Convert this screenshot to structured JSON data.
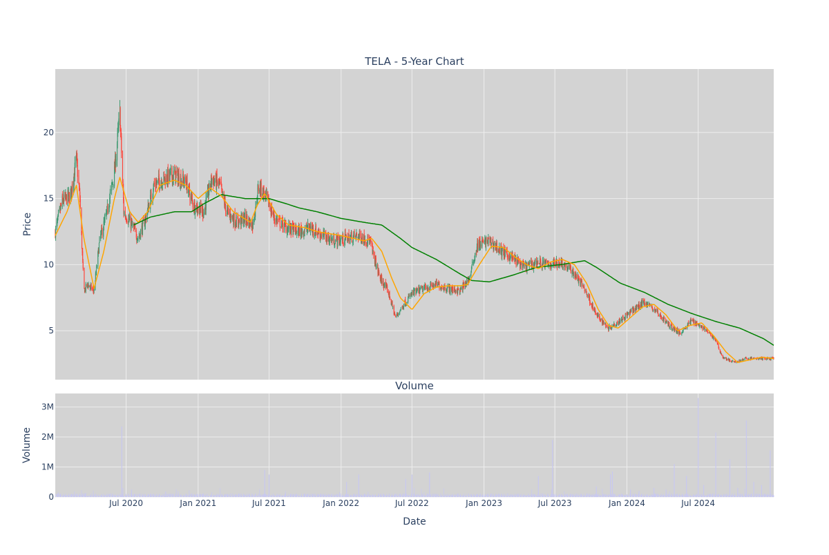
{
  "colors": {
    "plot_bg": "#d3d3d3",
    "grid": "#eeeeee",
    "up": "#3d9970",
    "down": "#ff4136",
    "ma_short": "#ffa500",
    "ma_long": "#008000",
    "volume": "#c8c8f0",
    "text": "#2a3f5f"
  },
  "chart_data": [
    {
      "type": "candlestick",
      "title": "TELA - 5-Year Chart",
      "ylabel": "Price",
      "xlabel": "",
      "ylim": [
        1.3,
        24.8
      ],
      "xlim": [
        "2020-01-02",
        "2025-01-10"
      ],
      "yticks": [
        5,
        10,
        15,
        20
      ],
      "grid": true,
      "legend": "none",
      "series": [
        {
          "kind": "candlestick",
          "approx_close": [
            [
              "2020-01-02",
              12.5
            ],
            [
              "2020-01-20",
              14.8
            ],
            [
              "2020-02-10",
              15.2
            ],
            [
              "2020-02-25",
              18.0
            ],
            [
              "2020-03-05",
              15.0
            ],
            [
              "2020-03-15",
              8.0
            ],
            [
              "2020-03-25",
              8.5
            ],
            [
              "2020-04-10",
              8.0
            ],
            [
              "2020-04-25",
              12.0
            ],
            [
              "2020-05-10",
              13.5
            ],
            [
              "2020-06-01",
              17.0
            ],
            [
              "2020-06-15",
              21.5
            ],
            [
              "2020-06-25",
              14.0
            ],
            [
              "2020-07-15",
              13.0
            ],
            [
              "2020-08-01",
              12.0
            ],
            [
              "2020-08-20",
              13.5
            ],
            [
              "2020-09-10",
              16.0
            ],
            [
              "2020-10-05",
              16.5
            ],
            [
              "2020-11-01",
              16.8
            ],
            [
              "2020-12-01",
              16.2
            ],
            [
              "2020-12-20",
              14.5
            ],
            [
              "2021-01-15",
              14.0
            ],
            [
              "2021-02-05",
              16.5
            ],
            [
              "2021-02-25",
              16.0
            ],
            [
              "2021-03-15",
              14.0
            ],
            [
              "2021-04-10",
              13.2
            ],
            [
              "2021-05-01",
              13.5
            ],
            [
              "2021-05-20",
              13.0
            ],
            [
              "2021-06-05",
              16.0
            ],
            [
              "2021-06-25",
              15.0
            ],
            [
              "2021-07-15",
              13.5
            ],
            [
              "2021-08-15",
              12.8
            ],
            [
              "2021-09-15",
              12.5
            ],
            [
              "2021-10-15",
              12.8
            ],
            [
              "2021-11-15",
              12.2
            ],
            [
              "2021-12-15",
              11.8
            ],
            [
              "2022-01-15",
              12.0
            ],
            [
              "2022-02-15",
              12.2
            ],
            [
              "2022-03-15",
              11.8
            ],
            [
              "2022-04-10",
              9.0
            ],
            [
              "2022-05-01",
              8.0
            ],
            [
              "2022-05-20",
              6.0
            ],
            [
              "2022-06-10",
              7.0
            ],
            [
              "2022-07-01",
              7.8
            ],
            [
              "2022-08-01",
              8.2
            ],
            [
              "2022-09-01",
              8.5
            ],
            [
              "2022-10-01",
              8.2
            ],
            [
              "2022-11-01",
              8.0
            ],
            [
              "2022-11-25",
              9.0
            ],
            [
              "2022-12-15",
              11.5
            ],
            [
              "2023-01-15",
              11.8
            ],
            [
              "2023-02-15",
              11.0
            ],
            [
              "2023-03-15",
              10.5
            ],
            [
              "2023-04-15",
              9.8
            ],
            [
              "2023-05-15",
              10.2
            ],
            [
              "2023-06-15",
              10.0
            ],
            [
              "2023-07-15",
              10.2
            ],
            [
              "2023-08-15",
              9.5
            ],
            [
              "2023-09-15",
              8.2
            ],
            [
              "2023-10-15",
              6.2
            ],
            [
              "2023-11-15",
              5.2
            ],
            [
              "2023-12-15",
              5.8
            ],
            [
              "2024-01-15",
              6.5
            ],
            [
              "2024-02-15",
              7.2
            ],
            [
              "2024-03-15",
              6.5
            ],
            [
              "2024-04-15",
              5.5
            ],
            [
              "2024-05-15",
              4.8
            ],
            [
              "2024-06-15",
              5.8
            ],
            [
              "2024-07-15",
              5.2
            ],
            [
              "2024-08-15",
              4.3
            ],
            [
              "2024-09-01",
              3.0
            ],
            [
              "2024-10-01",
              2.6
            ],
            [
              "2024-11-01",
              2.9
            ],
            [
              "2024-12-01",
              2.9
            ],
            [
              "2025-01-10",
              2.9
            ]
          ]
        },
        {
          "kind": "line",
          "approx_values": [
            [
              "2020-01-02",
              12.2
            ],
            [
              "2020-02-01",
              14.0
            ],
            [
              "2020-02-25",
              16.0
            ],
            [
              "2020-03-15",
              12.0
            ],
            [
              "2020-04-10",
              8.2
            ],
            [
              "2020-05-05",
              11.0
            ],
            [
              "2020-06-01",
              15.0
            ],
            [
              "2020-06-15",
              16.6
            ],
            [
              "2020-07-10",
              14.0
            ],
            [
              "2020-08-01",
              13.2
            ],
            [
              "2020-08-25",
              14.0
            ],
            [
              "2020-09-25",
              16.0
            ],
            [
              "2020-11-01",
              16.4
            ],
            [
              "2020-12-01",
              16.0
            ],
            [
              "2021-01-01",
              15.0
            ],
            [
              "2021-02-01",
              15.8
            ],
            [
              "2021-03-01",
              15.2
            ],
            [
              "2021-04-01",
              14.0
            ],
            [
              "2021-05-15",
              13.2
            ],
            [
              "2021-06-01",
              14.5
            ],
            [
              "2021-06-20",
              15.4
            ],
            [
              "2021-07-20",
              13.8
            ],
            [
              "2021-08-20",
              13.0
            ],
            [
              "2021-10-01",
              12.8
            ],
            [
              "2021-11-01",
              12.5
            ],
            [
              "2022-01-01",
              12.2
            ],
            [
              "2022-03-01",
              11.8
            ],
            [
              "2022-03-20",
              12.0
            ],
            [
              "2022-04-15",
              11.0
            ],
            [
              "2022-05-10",
              9.0
            ],
            [
              "2022-06-01",
              7.5
            ],
            [
              "2022-07-01",
              6.6
            ],
            [
              "2022-08-01",
              7.8
            ],
            [
              "2022-09-01",
              8.3
            ],
            [
              "2022-10-01",
              8.4
            ],
            [
              "2022-11-01",
              8.4
            ],
            [
              "2022-11-20",
              8.5
            ],
            [
              "2022-12-20",
              10.0
            ],
            [
              "2023-01-20",
              11.4
            ],
            [
              "2023-02-20",
              11.3
            ],
            [
              "2023-03-20",
              10.6
            ],
            [
              "2023-04-20",
              10.0
            ],
            [
              "2023-05-20",
              9.7
            ],
            [
              "2023-06-20",
              10.2
            ],
            [
              "2023-07-20",
              10.4
            ],
            [
              "2023-08-20",
              10.0
            ],
            [
              "2023-09-20",
              8.6
            ],
            [
              "2023-10-20",
              6.6
            ],
            [
              "2023-11-15",
              5.4
            ],
            [
              "2023-12-10",
              5.2
            ],
            [
              "2024-01-10",
              6.0
            ],
            [
              "2024-02-10",
              6.8
            ],
            [
              "2024-03-10",
              7.0
            ],
            [
              "2024-04-10",
              6.2
            ],
            [
              "2024-05-10",
              5.0
            ],
            [
              "2024-06-10",
              5.4
            ],
            [
              "2024-07-10",
              5.6
            ],
            [
              "2024-08-10",
              4.6
            ],
            [
              "2024-09-10",
              3.4
            ],
            [
              "2024-10-10",
              2.6
            ],
            [
              "2024-11-10",
              2.8
            ],
            [
              "2024-12-10",
              3.0
            ],
            [
              "2025-01-10",
              2.9
            ]
          ]
        },
        {
          "kind": "line",
          "approx_values": [
            [
              "2020-07-20",
              13.0
            ],
            [
              "2020-09-01",
              13.6
            ],
            [
              "2020-11-01",
              14.0
            ],
            [
              "2020-12-15",
              14.0
            ],
            [
              "2021-01-15",
              14.6
            ],
            [
              "2021-03-01",
              15.3
            ],
            [
              "2021-05-01",
              15.0
            ],
            [
              "2021-07-01",
              15.0
            ],
            [
              "2021-08-15",
              14.6
            ],
            [
              "2021-09-15",
              14.3
            ],
            [
              "2021-11-01",
              14.0
            ],
            [
              "2022-01-01",
              13.5
            ],
            [
              "2022-03-01",
              13.2
            ],
            [
              "2022-04-15",
              13.0
            ],
            [
              "2022-06-01",
              12.0
            ],
            [
              "2022-07-01",
              11.3
            ],
            [
              "2022-09-01",
              10.4
            ],
            [
              "2022-11-01",
              9.3
            ],
            [
              "2022-12-01",
              8.8
            ],
            [
              "2023-01-15",
              8.7
            ],
            [
              "2023-03-15",
              9.2
            ],
            [
              "2023-05-15",
              9.8
            ],
            [
              "2023-07-15",
              10.0
            ],
            [
              "2023-09-15",
              10.3
            ],
            [
              "2023-10-15",
              9.8
            ],
            [
              "2023-12-15",
              8.6
            ],
            [
              "2024-02-15",
              7.9
            ],
            [
              "2024-04-15",
              7.0
            ],
            [
              "2024-06-15",
              6.3
            ],
            [
              "2024-08-15",
              5.7
            ],
            [
              "2024-10-15",
              5.2
            ],
            [
              "2024-12-15",
              4.4
            ],
            [
              "2025-01-10",
              3.9
            ]
          ]
        }
      ]
    },
    {
      "type": "bar",
      "title": "Volume",
      "ylabel": "Volume",
      "xlabel": "Date",
      "ylim": [
        0,
        3450000
      ],
      "yticks": [
        0,
        1000000,
        2000000,
        3000000
      ],
      "ytick_labels": [
        "0",
        "1M",
        "2M",
        "3M"
      ],
      "xticks": [
        "2020-07-01",
        "2021-01-01",
        "2021-07-01",
        "2022-01-01",
        "2022-07-01",
        "2023-01-01",
        "2023-07-01",
        "2024-01-01",
        "2024-07-01"
      ],
      "xtick_labels": [
        "Jul 2020",
        "Jan 2021",
        "Jul 2021",
        "Jan 2022",
        "Jul 2022",
        "Jan 2023",
        "Jul 2023",
        "Jan 2024",
        "Jul 2024"
      ],
      "baseline_volume": 80000,
      "notable_bars": [
        [
          "2020-01-10",
          150000
        ],
        [
          "2020-03-20",
          130000
        ],
        [
          "2020-06-20",
          2350000
        ],
        [
          "2020-07-15",
          250000
        ],
        [
          "2020-10-10",
          180000
        ],
        [
          "2021-06-20",
          900000
        ],
        [
          "2021-07-01",
          750000
        ],
        [
          "2022-01-15",
          500000
        ],
        [
          "2022-02-15",
          750000
        ],
        [
          "2022-06-15",
          600000
        ],
        [
          "2022-07-01",
          750000
        ],
        [
          "2022-08-15",
          820000
        ],
        [
          "2023-05-20",
          700000
        ],
        [
          "2023-06-25",
          1900000
        ],
        [
          "2023-10-15",
          350000
        ],
        [
          "2023-11-20",
          750000
        ],
        [
          "2023-11-25",
          850000
        ],
        [
          "2024-01-10",
          250000
        ],
        [
          "2024-02-01",
          200000
        ],
        [
          "2024-03-10",
          300000
        ],
        [
          "2024-04-10",
          250000
        ],
        [
          "2024-05-01",
          1100000
        ],
        [
          "2024-06-01",
          700000
        ],
        [
          "2024-07-01",
          3300000
        ],
        [
          "2024-07-15",
          400000
        ],
        [
          "2024-08-15",
          2150000
        ],
        [
          "2024-09-20",
          1250000
        ],
        [
          "2024-10-10",
          300000
        ],
        [
          "2024-11-01",
          2550000
        ],
        [
          "2024-11-20",
          500000
        ],
        [
          "2024-12-10",
          400000
        ],
        [
          "2025-01-01",
          1550000
        ]
      ]
    }
  ]
}
